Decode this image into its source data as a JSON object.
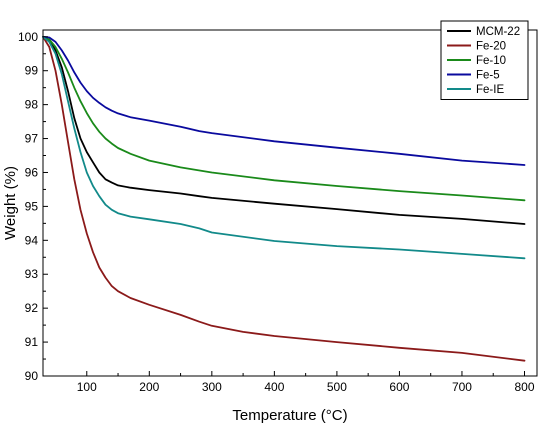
{
  "chart_data": {
    "type": "line",
    "xlabel": "Temperature (°C)",
    "ylabel": "Weight (%)",
    "xlim": [
      30,
      820
    ],
    "ylim": [
      90,
      100.2
    ],
    "x_ticks": [
      100,
      200,
      300,
      400,
      500,
      600,
      700,
      800
    ],
    "y_ticks": [
      90,
      91,
      92,
      93,
      94,
      95,
      96,
      97,
      98,
      99,
      100
    ],
    "grid": false,
    "legend_position": "top-right",
    "series": [
      {
        "name": "MCM-22",
        "color": "#000000",
        "points": [
          [
            30,
            100.0
          ],
          [
            40,
            99.9
          ],
          [
            50,
            99.6
          ],
          [
            60,
            99.1
          ],
          [
            70,
            98.4
          ],
          [
            80,
            97.6
          ],
          [
            90,
            97.0
          ],
          [
            100,
            96.6
          ],
          [
            110,
            96.3
          ],
          [
            120,
            96.0
          ],
          [
            130,
            95.8
          ],
          [
            140,
            95.7
          ],
          [
            150,
            95.62
          ],
          [
            170,
            95.55
          ],
          [
            200,
            95.48
          ],
          [
            250,
            95.38
          ],
          [
            280,
            95.3
          ],
          [
            300,
            95.25
          ],
          [
            400,
            95.08
          ],
          [
            500,
            94.92
          ],
          [
            600,
            94.75
          ],
          [
            700,
            94.63
          ],
          [
            800,
            94.48
          ]
        ]
      },
      {
        "name": "Fe-20",
        "color": "#8B1A1A",
        "points": [
          [
            30,
            100.0
          ],
          [
            40,
            99.7
          ],
          [
            50,
            99.0
          ],
          [
            60,
            98.0
          ],
          [
            70,
            96.9
          ],
          [
            80,
            95.8
          ],
          [
            90,
            94.9
          ],
          [
            100,
            94.2
          ],
          [
            110,
            93.65
          ],
          [
            120,
            93.2
          ],
          [
            130,
            92.9
          ],
          [
            140,
            92.65
          ],
          [
            150,
            92.5
          ],
          [
            170,
            92.3
          ],
          [
            200,
            92.1
          ],
          [
            250,
            91.8
          ],
          [
            280,
            91.6
          ],
          [
            300,
            91.48
          ],
          [
            350,
            91.3
          ],
          [
            400,
            91.18
          ],
          [
            500,
            91.0
          ],
          [
            600,
            90.83
          ],
          [
            700,
            90.68
          ],
          [
            800,
            90.45
          ]
        ]
      },
      {
        "name": "Fe-10",
        "color": "#1A8A1A",
        "points": [
          [
            30,
            100.0
          ],
          [
            40,
            99.92
          ],
          [
            50,
            99.7
          ],
          [
            60,
            99.35
          ],
          [
            70,
            98.95
          ],
          [
            80,
            98.5
          ],
          [
            90,
            98.1
          ],
          [
            100,
            97.75
          ],
          [
            110,
            97.45
          ],
          [
            120,
            97.2
          ],
          [
            130,
            97.0
          ],
          [
            140,
            96.85
          ],
          [
            150,
            96.72
          ],
          [
            170,
            96.55
          ],
          [
            200,
            96.35
          ],
          [
            250,
            96.15
          ],
          [
            300,
            96.0
          ],
          [
            400,
            95.77
          ],
          [
            500,
            95.6
          ],
          [
            600,
            95.45
          ],
          [
            700,
            95.32
          ],
          [
            800,
            95.18
          ]
        ]
      },
      {
        "name": "Fe-5",
        "color": "#0A0A9E",
        "points": [
          [
            30,
            100.0
          ],
          [
            40,
            99.98
          ],
          [
            50,
            99.85
          ],
          [
            60,
            99.6
          ],
          [
            70,
            99.3
          ],
          [
            80,
            98.95
          ],
          [
            90,
            98.65
          ],
          [
            100,
            98.4
          ],
          [
            110,
            98.2
          ],
          [
            120,
            98.05
          ],
          [
            130,
            97.92
          ],
          [
            140,
            97.82
          ],
          [
            150,
            97.74
          ],
          [
            170,
            97.63
          ],
          [
            200,
            97.53
          ],
          [
            250,
            97.35
          ],
          [
            280,
            97.22
          ],
          [
            300,
            97.16
          ],
          [
            400,
            96.92
          ],
          [
            500,
            96.73
          ],
          [
            600,
            96.55
          ],
          [
            700,
            96.35
          ],
          [
            800,
            96.22
          ]
        ]
      },
      {
        "name": "Fe-IE",
        "color": "#128A8A",
        "points": [
          [
            30,
            100.0
          ],
          [
            40,
            99.85
          ],
          [
            50,
            99.5
          ],
          [
            60,
            98.9
          ],
          [
            70,
            98.1
          ],
          [
            80,
            97.3
          ],
          [
            90,
            96.6
          ],
          [
            100,
            96.0
          ],
          [
            110,
            95.6
          ],
          [
            120,
            95.3
          ],
          [
            130,
            95.05
          ],
          [
            140,
            94.9
          ],
          [
            150,
            94.8
          ],
          [
            170,
            94.7
          ],
          [
            200,
            94.62
          ],
          [
            250,
            94.48
          ],
          [
            280,
            94.35
          ],
          [
            300,
            94.23
          ],
          [
            400,
            93.98
          ],
          [
            500,
            93.83
          ],
          [
            600,
            93.73
          ],
          [
            700,
            93.6
          ],
          [
            800,
            93.47
          ]
        ]
      }
    ]
  }
}
